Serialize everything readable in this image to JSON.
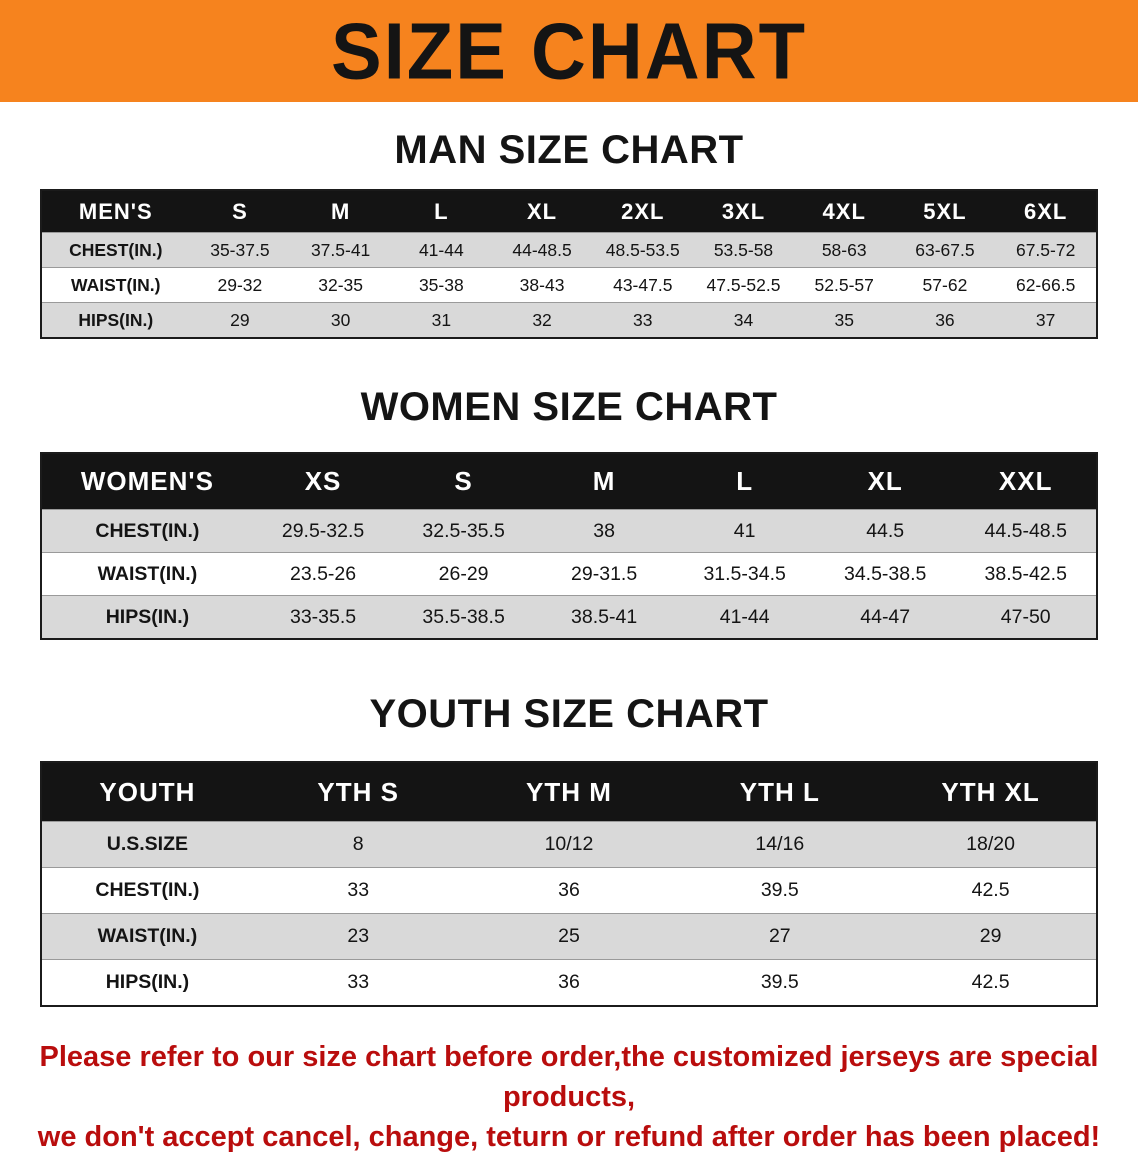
{
  "banner": {
    "title": "SIZE CHART"
  },
  "colors": {
    "banner_bg": "#f6831e",
    "header_bg": "#141414",
    "row_shade": "#d9d9d9",
    "disclaimer_text": "#b90d0d"
  },
  "sections": [
    {
      "heading": "MAN SIZE CHART",
      "table": {
        "label": "MEN'S",
        "columns": [
          "S",
          "M",
          "L",
          "XL",
          "2XL",
          "3XL",
          "4XL",
          "5XL",
          "6XL"
        ],
        "rows": [
          {
            "label": "CHEST(IN.)",
            "values": [
              "35-37.5",
              "37.5-41",
              "41-44",
              "44-48.5",
              "48.5-53.5",
              "53.5-58",
              "58-63",
              "63-67.5",
              "67.5-72"
            ]
          },
          {
            "label": "WAIST(IN.)",
            "values": [
              "29-32",
              "32-35",
              "35-38",
              "38-43",
              "43-47.5",
              "47.5-52.5",
              "52.5-57",
              "57-62",
              "62-66.5"
            ]
          },
          {
            "label": "HIPS(IN.)",
            "values": [
              "29",
              "30",
              "31",
              "32",
              "33",
              "34",
              "35",
              "36",
              "37"
            ]
          }
        ]
      }
    },
    {
      "heading": "WOMEN SIZE CHART",
      "table": {
        "label": "WOMEN'S",
        "columns": [
          "XS",
          "S",
          "M",
          "L",
          "XL",
          "XXL"
        ],
        "rows": [
          {
            "label": "CHEST(IN.)",
            "values": [
              "29.5-32.5",
              "32.5-35.5",
              "38",
              "41",
              "44.5",
              "44.5-48.5"
            ]
          },
          {
            "label": "WAIST(IN.)",
            "values": [
              "23.5-26",
              "26-29",
              "29-31.5",
              "31.5-34.5",
              "34.5-38.5",
              "38.5-42.5"
            ]
          },
          {
            "label": "HIPS(IN.)",
            "values": [
              "33-35.5",
              "35.5-38.5",
              "38.5-41",
              "41-44",
              "44-47",
              "47-50"
            ]
          }
        ]
      }
    },
    {
      "heading": "YOUTH SIZE CHART",
      "table": {
        "label": "YOUTH",
        "columns": [
          "YTH S",
          "YTH M",
          "YTH L",
          "YTH XL"
        ],
        "rows": [
          {
            "label": "U.S.SIZE",
            "values": [
              "8",
              "10/12",
              "14/16",
              "18/20"
            ]
          },
          {
            "label": "CHEST(IN.)",
            "values": [
              "33",
              "36",
              "39.5",
              "42.5"
            ]
          },
          {
            "label": "WAIST(IN.)",
            "values": [
              "23",
              "25",
              "27",
              "29"
            ]
          },
          {
            "label": "HIPS(IN.)",
            "values": [
              "33",
              "36",
              "39.5",
              "42.5"
            ]
          }
        ]
      }
    }
  ],
  "disclaimer": {
    "line1": "Please refer to our size chart before order,the customized jerseys are special products,",
    "line2": "we don't accept cancel, change, teturn or refund after order has been placed!"
  }
}
